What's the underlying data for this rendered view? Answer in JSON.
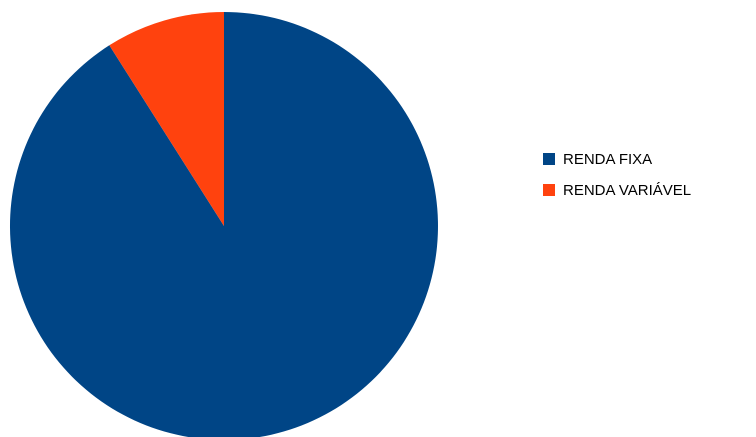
{
  "chart_data": {
    "type": "pie",
    "title": "",
    "start_angle_deg": 0,
    "direction": "clockwise",
    "legend_position": "right",
    "slices": [
      {
        "label": "RENDA FIXA",
        "value": 91,
        "color": "#004586"
      },
      {
        "label": "RENDA VARIÁVEL",
        "value": 9,
        "color": "#FF420E"
      }
    ]
  }
}
